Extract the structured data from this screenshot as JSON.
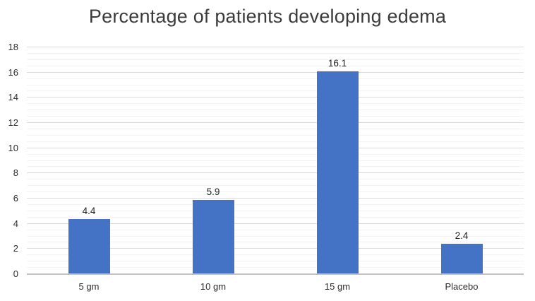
{
  "chart_data": {
    "type": "bar",
    "title": "Percentage of patients developing edema",
    "categories": [
      "5 gm",
      "10 gm",
      "15 gm",
      "Placebo"
    ],
    "values": [
      4.4,
      5.9,
      16.1,
      2.4
    ],
    "data_labels": [
      "4.4",
      "5.9",
      "16.1",
      "2.4"
    ],
    "xlabel": "",
    "ylabel": "",
    "ylim": [
      0,
      18
    ],
    "y_major_step": 2,
    "y_minor_step": 0.5,
    "y_tick_labels": [
      "0",
      "2",
      "4",
      "6",
      "8",
      "10",
      "12",
      "14",
      "16",
      "18"
    ],
    "grid": "major and minor horizontal gridlines, no vertical",
    "legend_position": "none",
    "colors": {
      "bar": "#4472c4",
      "major_gridline": "#dadada",
      "minor_gridline": "#f3f3f3",
      "axis_line": "#c3c3c3",
      "text": "#2b2b2b",
      "title_text": "#3b3b3b",
      "background": "#ffffff"
    }
  }
}
